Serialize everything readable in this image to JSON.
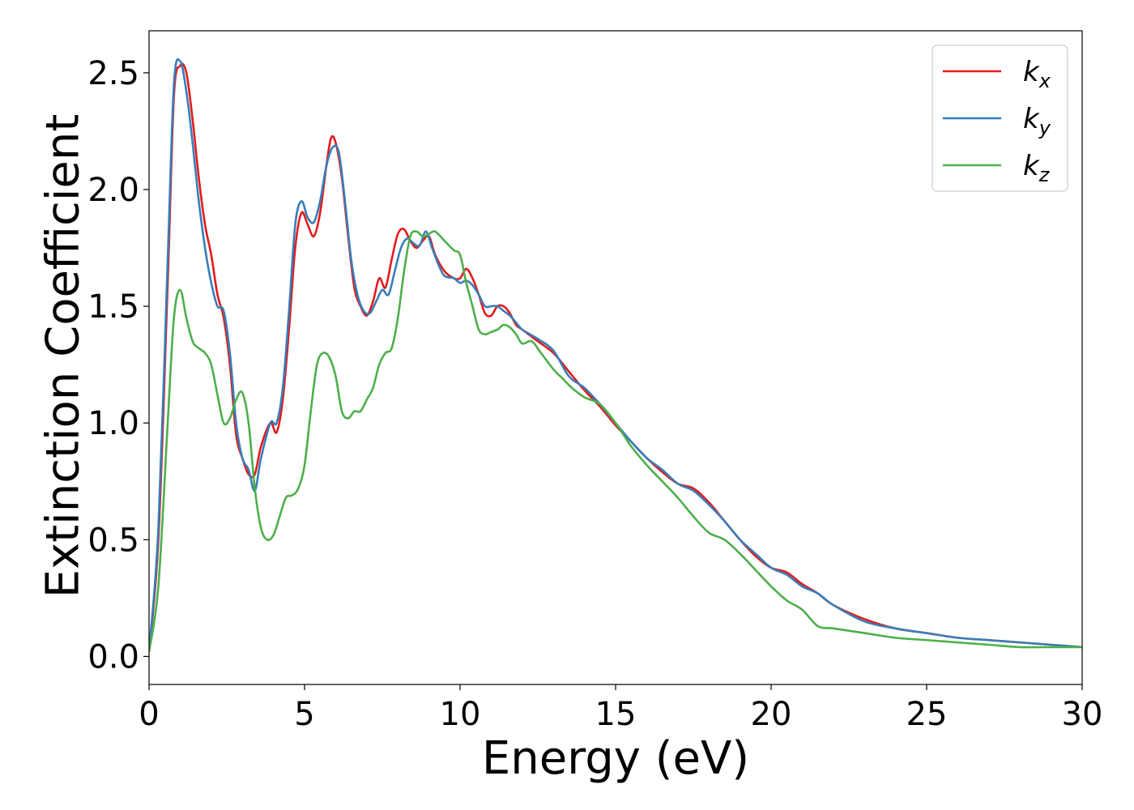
{
  "chart_data": {
    "type": "line",
    "title": "",
    "xlabel": "Energy (eV)",
    "ylabel": "Extinction Coefficient",
    "xlim": [
      0,
      30
    ],
    "ylim": [
      -0.12,
      2.68
    ],
    "x_ticks": [
      0,
      5,
      10,
      15,
      20,
      25,
      30
    ],
    "y_ticks": [
      0.0,
      0.5,
      1.0,
      1.5,
      2.0,
      2.5
    ],
    "x_tick_labels": [
      "0",
      "5",
      "10",
      "15",
      "20",
      "25",
      "30"
    ],
    "y_tick_labels": [
      "0.0",
      "0.5",
      "1.0",
      "1.5",
      "2.0",
      "2.5"
    ],
    "grid": false,
    "legend_position": "top-right",
    "series": [
      {
        "name": "k_x",
        "legend_base": "k",
        "legend_sub": "x",
        "color": "#e41a1c",
        "x": [
          0,
          0.3,
          0.6,
          0.8,
          1.0,
          1.2,
          1.4,
          1.6,
          1.8,
          2.0,
          2.2,
          2.4,
          2.6,
          2.8,
          3.0,
          3.2,
          3.4,
          3.6,
          3.9,
          4.1,
          4.3,
          4.5,
          4.7,
          4.9,
          5.1,
          5.3,
          5.5,
          5.7,
          5.85,
          6.0,
          6.2,
          6.4,
          6.6,
          6.8,
          7.0,
          7.2,
          7.4,
          7.6,
          7.8,
          8.0,
          8.2,
          8.4,
          8.6,
          8.8,
          9.0,
          9.2,
          9.5,
          9.8,
          10.0,
          10.2,
          10.4,
          10.6,
          10.8,
          11.0,
          11.2,
          11.4,
          11.6,
          11.8,
          12.0,
          12.5,
          13.0,
          13.5,
          14.0,
          14.5,
          15.0,
          15.5,
          16.0,
          16.5,
          17.0,
          17.5,
          18.0,
          18.5,
          19.0,
          19.5,
          20.0,
          20.5,
          21.0,
          21.5,
          22.0,
          23.0,
          24.0,
          25.0,
          26.0,
          27.0,
          28.0,
          29.0,
          30.0
        ],
        "values": [
          0.02,
          0.5,
          1.6,
          2.4,
          2.53,
          2.5,
          2.3,
          2.05,
          1.85,
          1.72,
          1.55,
          1.45,
          1.25,
          0.95,
          0.85,
          0.78,
          0.78,
          0.9,
          1.0,
          0.96,
          1.1,
          1.4,
          1.75,
          1.9,
          1.85,
          1.8,
          1.9,
          2.1,
          2.22,
          2.2,
          2.05,
          1.8,
          1.58,
          1.5,
          1.46,
          1.52,
          1.62,
          1.58,
          1.7,
          1.81,
          1.83,
          1.78,
          1.75,
          1.78,
          1.8,
          1.72,
          1.65,
          1.62,
          1.62,
          1.66,
          1.62,
          1.55,
          1.47,
          1.46,
          1.5,
          1.5,
          1.47,
          1.42,
          1.4,
          1.35,
          1.3,
          1.22,
          1.14,
          1.07,
          0.99,
          0.92,
          0.85,
          0.79,
          0.74,
          0.72,
          0.66,
          0.58,
          0.5,
          0.43,
          0.38,
          0.36,
          0.31,
          0.27,
          0.22,
          0.16,
          0.12,
          0.1,
          0.08,
          0.07,
          0.06,
          0.05,
          0.04
        ]
      },
      {
        "name": "k_y",
        "legend_base": "k",
        "legend_sub": "y",
        "color": "#377eb8",
        "x": [
          0,
          0.3,
          0.6,
          0.8,
          1.0,
          1.2,
          1.4,
          1.6,
          1.8,
          2.0,
          2.2,
          2.4,
          2.6,
          2.8,
          3.0,
          3.2,
          3.4,
          3.6,
          3.9,
          4.1,
          4.3,
          4.5,
          4.7,
          4.9,
          5.1,
          5.3,
          5.5,
          5.7,
          5.9,
          6.1,
          6.3,
          6.5,
          6.7,
          6.9,
          7.1,
          7.3,
          7.5,
          7.7,
          7.9,
          8.1,
          8.3,
          8.5,
          8.7,
          8.9,
          9.1,
          9.3,
          9.5,
          9.8,
          10.0,
          10.2,
          10.4,
          10.6,
          10.8,
          11.0,
          11.2,
          11.4,
          11.6,
          11.8,
          12.0,
          12.5,
          13.0,
          13.5,
          14.0,
          14.5,
          15.0,
          15.5,
          16.0,
          16.5,
          17.0,
          17.5,
          18.0,
          18.5,
          19.0,
          19.5,
          20.0,
          20.5,
          21.0,
          21.5,
          22.0,
          23.0,
          24.0,
          25.0,
          26.0,
          27.0,
          28.0,
          29.0,
          30.0
        ],
        "values": [
          0.02,
          0.55,
          1.7,
          2.45,
          2.55,
          2.42,
          2.2,
          1.95,
          1.75,
          1.6,
          1.5,
          1.48,
          1.3,
          1.0,
          0.85,
          0.8,
          0.71,
          0.85,
          1.0,
          1.0,
          1.15,
          1.48,
          1.85,
          1.95,
          1.88,
          1.86,
          1.95,
          2.1,
          2.18,
          2.16,
          1.95,
          1.7,
          1.55,
          1.48,
          1.47,
          1.52,
          1.57,
          1.55,
          1.65,
          1.75,
          1.79,
          1.77,
          1.76,
          1.82,
          1.75,
          1.68,
          1.63,
          1.62,
          1.6,
          1.61,
          1.59,
          1.55,
          1.5,
          1.5,
          1.5,
          1.48,
          1.46,
          1.43,
          1.4,
          1.36,
          1.31,
          1.2,
          1.15,
          1.08,
          1.0,
          0.92,
          0.85,
          0.8,
          0.74,
          0.71,
          0.65,
          0.58,
          0.5,
          0.44,
          0.38,
          0.35,
          0.3,
          0.27,
          0.22,
          0.15,
          0.12,
          0.1,
          0.08,
          0.07,
          0.06,
          0.05,
          0.04
        ]
      },
      {
        "name": "k_z",
        "legend_base": "k",
        "legend_sub": "z",
        "color": "#4daf4a",
        "x": [
          0,
          0.3,
          0.6,
          0.8,
          1.0,
          1.2,
          1.4,
          1.6,
          1.8,
          2.0,
          2.2,
          2.4,
          2.6,
          2.8,
          3.0,
          3.2,
          3.4,
          3.6,
          3.8,
          4.0,
          4.2,
          4.4,
          4.6,
          4.8,
          5.0,
          5.2,
          5.4,
          5.6,
          5.8,
          6.0,
          6.2,
          6.4,
          6.6,
          6.8,
          7.0,
          7.2,
          7.4,
          7.6,
          7.8,
          8.0,
          8.2,
          8.4,
          8.6,
          8.8,
          9.0,
          9.2,
          9.5,
          9.8,
          10.0,
          10.2,
          10.4,
          10.6,
          10.8,
          11.0,
          11.2,
          11.4,
          11.6,
          11.8,
          12.0,
          12.3,
          12.6,
          13.0,
          13.3,
          13.6,
          14.0,
          14.5,
          15.0,
          15.5,
          16.0,
          16.5,
          17.0,
          17.5,
          18.0,
          18.5,
          19.0,
          19.5,
          20.0,
          20.5,
          21.0,
          21.5,
          22.0,
          23.0,
          24.0,
          25.0,
          26.0,
          27.0,
          28.0,
          29.0,
          30.0
        ],
        "values": [
          0.02,
          0.3,
          1.0,
          1.45,
          1.57,
          1.45,
          1.35,
          1.32,
          1.3,
          1.25,
          1.12,
          1.0,
          1.02,
          1.1,
          1.13,
          1.0,
          0.72,
          0.55,
          0.5,
          0.52,
          0.6,
          0.68,
          0.69,
          0.72,
          0.82,
          1.05,
          1.25,
          1.3,
          1.28,
          1.2,
          1.05,
          1.02,
          1.05,
          1.05,
          1.1,
          1.15,
          1.25,
          1.3,
          1.32,
          1.45,
          1.65,
          1.8,
          1.82,
          1.8,
          1.81,
          1.82,
          1.78,
          1.74,
          1.72,
          1.6,
          1.5,
          1.4,
          1.38,
          1.39,
          1.4,
          1.42,
          1.41,
          1.38,
          1.34,
          1.35,
          1.3,
          1.23,
          1.19,
          1.15,
          1.11,
          1.08,
          1.0,
          0.9,
          0.82,
          0.75,
          0.68,
          0.6,
          0.53,
          0.5,
          0.44,
          0.37,
          0.3,
          0.24,
          0.2,
          0.13,
          0.12,
          0.1,
          0.08,
          0.07,
          0.06,
          0.05,
          0.04,
          0.04,
          0.04
        ]
      }
    ]
  }
}
